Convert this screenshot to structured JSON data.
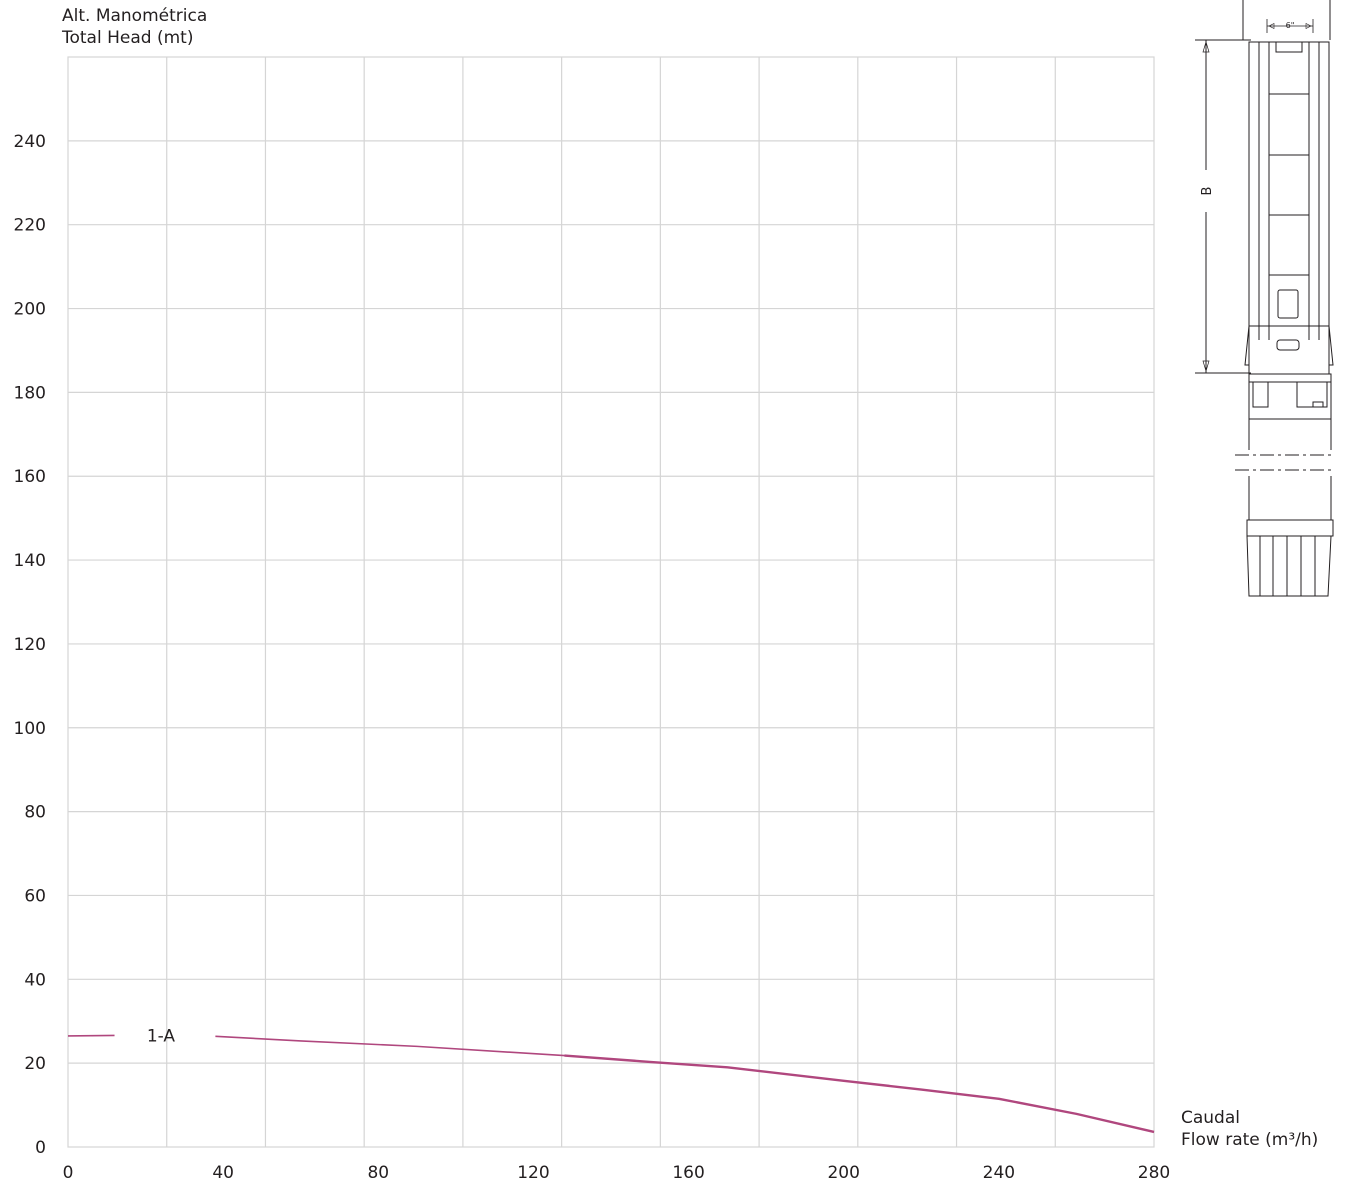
{
  "chart_data": {
    "type": "line",
    "title": "",
    "ylabel_line1": "Alt. Manométrica",
    "ylabel_line2": "Total Head (mt)",
    "xlabel_line1": "Caudal",
    "xlabel_line2": "Flow rate (m³/h)",
    "xlim": [
      0,
      280
    ],
    "ylim": [
      0,
      260
    ],
    "x_ticks": [
      0,
      40,
      80,
      120,
      160,
      200,
      240,
      280
    ],
    "y_ticks": [
      0,
      20,
      40,
      60,
      80,
      100,
      120,
      140,
      160,
      180,
      200,
      220,
      240
    ],
    "grid": true,
    "series": [
      {
        "name": "1-A",
        "color": "#b0477e",
        "x": [
          0,
          12,
          38,
          60,
          90,
          128,
          150,
          170,
          200,
          220,
          240,
          260,
          280
        ],
        "y": [
          26.5,
          26.6,
          26.4,
          25.3,
          24.0,
          21.8,
          20.3,
          19.0,
          15.8,
          13.7,
          11.5,
          7.9,
          3.6
        ]
      }
    ]
  },
  "drawing": {
    "pipe_label": "6\"",
    "dimension_label": "B"
  }
}
